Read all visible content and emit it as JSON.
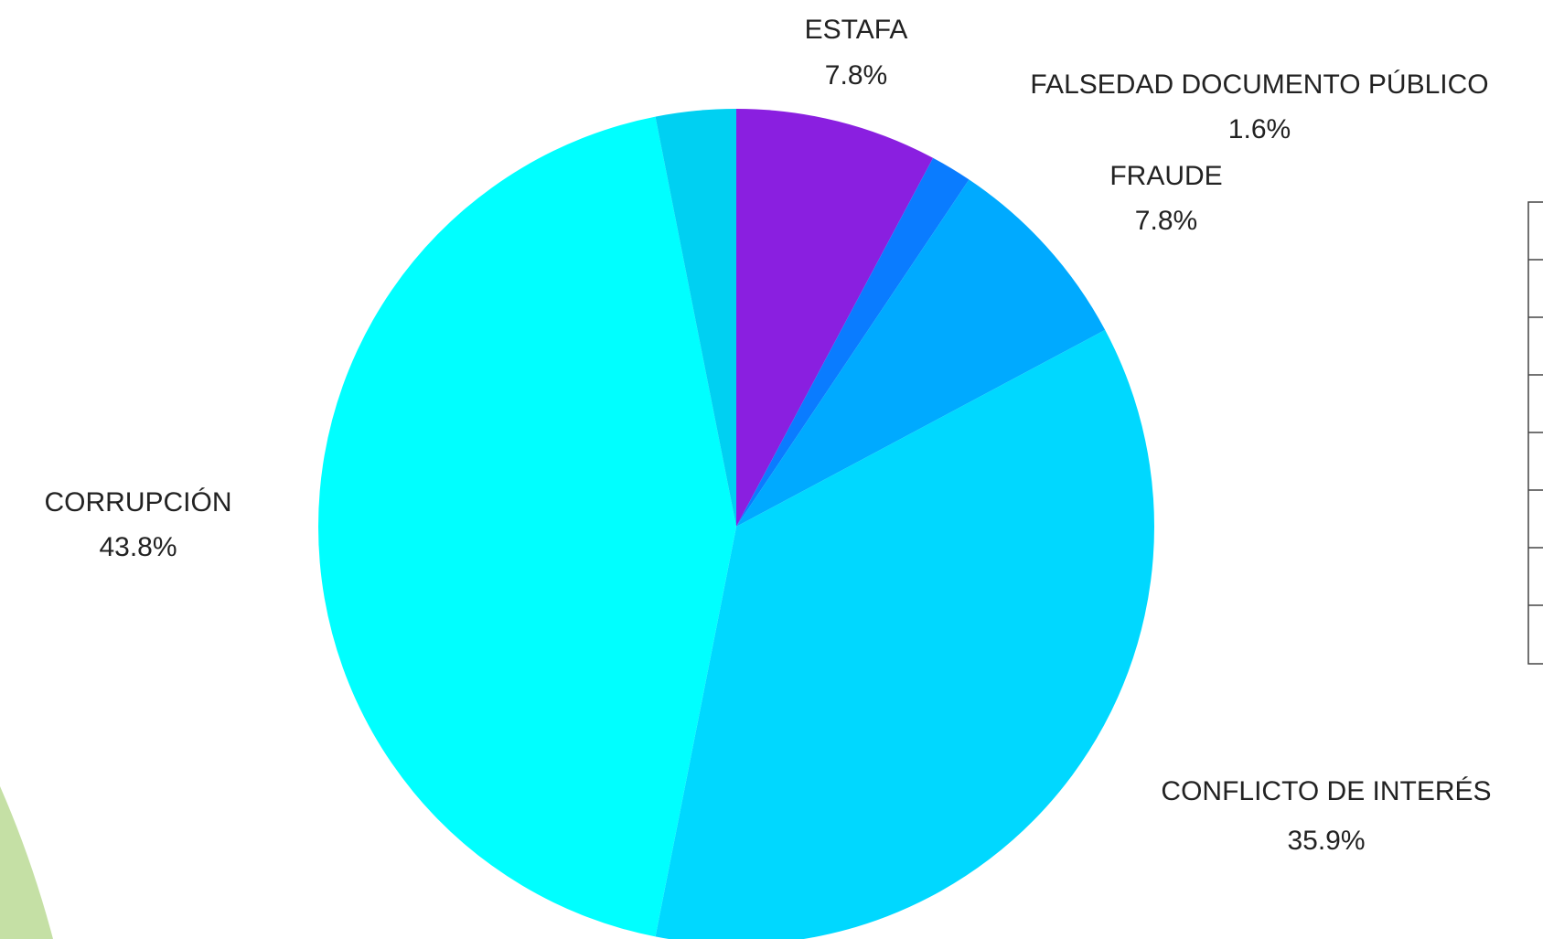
{
  "chart_data": {
    "type": "pie",
    "categories": [
      "ESTAFA",
      "FALSEDAD DOCUMENTO PÚBLICO",
      "FRAUDE",
      "CONFLICTO DE INTERÉS",
      "CORRUPCIÓN",
      null
    ],
    "values": [
      7.8,
      1.6,
      7.8,
      35.9,
      43.8,
      3.1
    ],
    "value_labels": [
      "7.8%",
      "1.6%",
      "7.8%",
      "35.9%",
      "43.8%",
      null
    ],
    "colors": [
      "#8a1fe0",
      "#0a7cff",
      "#00aaff",
      "#00d8ff",
      "#00ffff",
      "#00d0f2"
    ]
  }
}
